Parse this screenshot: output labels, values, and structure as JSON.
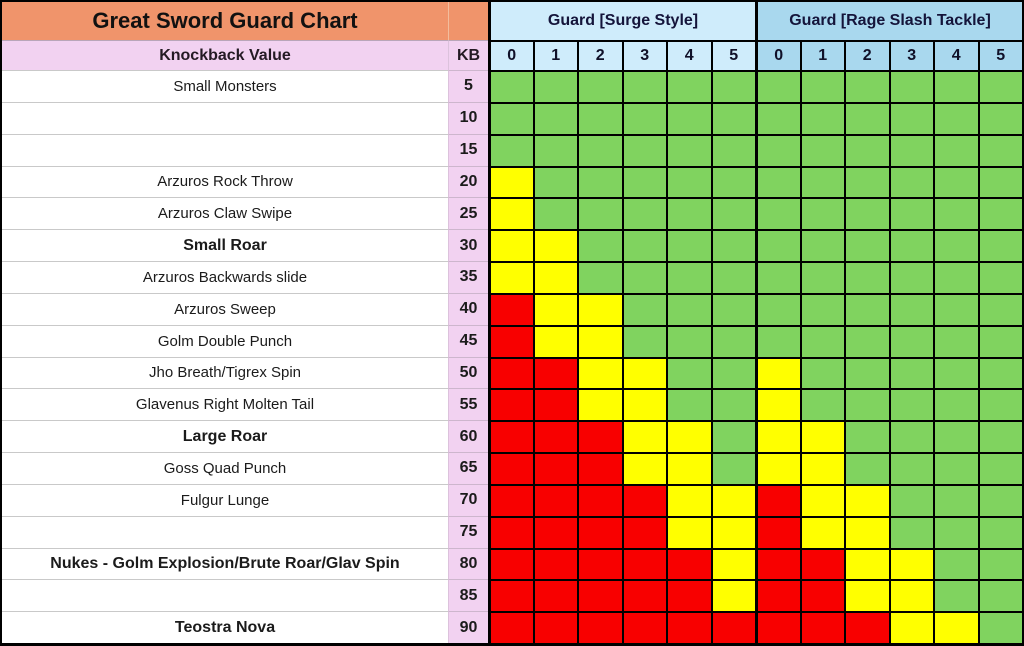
{
  "chart_data": {
    "type": "heatmap",
    "title": "Great Sword Guard Chart",
    "col_header": {
      "knockback_label": "Knockback Value",
      "kb_label": "KB",
      "groups": [
        {
          "label": "Guard [Surge Style]",
          "levels": [
            "0",
            "1",
            "2",
            "3",
            "4",
            "5"
          ]
        },
        {
          "label": "Guard [Rage Slash Tackle]",
          "levels": [
            "0",
            "1",
            "2",
            "3",
            "4",
            "5"
          ]
        }
      ]
    },
    "cell_colors": {
      "G": "#80D35F",
      "Y": "#FFFF00",
      "R": "#F80000"
    },
    "theme_colors": {
      "title_bg": "#F0946B",
      "kb_column_bg": "#F2D2F1",
      "highlight_row_bg": "#E1A1DC",
      "surge_header_bg": "#CFECFB",
      "rage_header_bg": "#A9D8EE"
    },
    "rows": [
      {
        "name": "Small Monsters",
        "kb": "5",
        "style": "normal",
        "cells": [
          "G",
          "G",
          "G",
          "G",
          "G",
          "G",
          "G",
          "G",
          "G",
          "G",
          "G",
          "G"
        ]
      },
      {
        "name": "",
        "kb": "10",
        "style": "normal",
        "cells": [
          "G",
          "G",
          "G",
          "G",
          "G",
          "G",
          "G",
          "G",
          "G",
          "G",
          "G",
          "G"
        ]
      },
      {
        "name": "",
        "kb": "15",
        "style": "normal",
        "cells": [
          "G",
          "G",
          "G",
          "G",
          "G",
          "G",
          "G",
          "G",
          "G",
          "G",
          "G",
          "G"
        ]
      },
      {
        "name": "Arzuros Rock Throw",
        "kb": "20",
        "style": "normal",
        "cells": [
          "Y",
          "G",
          "G",
          "G",
          "G",
          "G",
          "G",
          "G",
          "G",
          "G",
          "G",
          "G"
        ]
      },
      {
        "name": "Arzuros Claw Swipe",
        "kb": "25",
        "style": "normal",
        "cells": [
          "Y",
          "G",
          "G",
          "G",
          "G",
          "G",
          "G",
          "G",
          "G",
          "G",
          "G",
          "G"
        ]
      },
      {
        "name": "Small Roar",
        "kb": "30",
        "style": "highlight",
        "cells": [
          "Y",
          "Y",
          "G",
          "G",
          "G",
          "G",
          "G",
          "G",
          "G",
          "G",
          "G",
          "G"
        ]
      },
      {
        "name": "Arzuros Backwards slide",
        "kb": "35",
        "style": "normal",
        "cells": [
          "Y",
          "Y",
          "G",
          "G",
          "G",
          "G",
          "G",
          "G",
          "G",
          "G",
          "G",
          "G"
        ]
      },
      {
        "name": "Arzuros Sweep",
        "kb": "40",
        "style": "normal",
        "cells": [
          "R",
          "Y",
          "Y",
          "G",
          "G",
          "G",
          "G",
          "G",
          "G",
          "G",
          "G",
          "G"
        ]
      },
      {
        "name": "Golm Double Punch",
        "kb": "45",
        "style": "normal",
        "cells": [
          "R",
          "Y",
          "Y",
          "G",
          "G",
          "G",
          "G",
          "G",
          "G",
          "G",
          "G",
          "G"
        ]
      },
      {
        "name": "Jho Breath/Tigrex Spin",
        "kb": "50",
        "style": "normal",
        "cells": [
          "R",
          "R",
          "Y",
          "Y",
          "G",
          "G",
          "Y",
          "G",
          "G",
          "G",
          "G",
          "G"
        ]
      },
      {
        "name": "Glavenus Right Molten Tail",
        "kb": "55",
        "style": "normal",
        "cells": [
          "R",
          "R",
          "Y",
          "Y",
          "G",
          "G",
          "Y",
          "G",
          "G",
          "G",
          "G",
          "G"
        ]
      },
      {
        "name": "Large Roar",
        "kb": "60",
        "style": "highlight",
        "cells": [
          "R",
          "R",
          "R",
          "Y",
          "Y",
          "G",
          "Y",
          "Y",
          "G",
          "G",
          "G",
          "G"
        ]
      },
      {
        "name": "Goss Quad Punch",
        "kb": "65",
        "style": "normal",
        "cells": [
          "R",
          "R",
          "R",
          "Y",
          "Y",
          "G",
          "Y",
          "Y",
          "G",
          "G",
          "G",
          "G"
        ]
      },
      {
        "name": "Fulgur Lunge",
        "kb": "70",
        "style": "normal",
        "cells": [
          "R",
          "R",
          "R",
          "R",
          "Y",
          "Y",
          "R",
          "Y",
          "Y",
          "G",
          "G",
          "G"
        ]
      },
      {
        "name": "",
        "kb": "75",
        "style": "normal",
        "cells": [
          "R",
          "R",
          "R",
          "R",
          "Y",
          "Y",
          "R",
          "Y",
          "Y",
          "G",
          "G",
          "G"
        ]
      },
      {
        "name": "Nukes - Golm Explosion/Brute Roar/Glav Spin",
        "kb": "80",
        "style": "bold",
        "cells": [
          "R",
          "R",
          "R",
          "R",
          "R",
          "Y",
          "R",
          "R",
          "Y",
          "Y",
          "G",
          "G"
        ]
      },
      {
        "name": "",
        "kb": "85",
        "style": "normal",
        "cells": [
          "R",
          "R",
          "R",
          "R",
          "R",
          "Y",
          "R",
          "R",
          "Y",
          "Y",
          "G",
          "G"
        ]
      },
      {
        "name": "Teostra Nova",
        "kb": "90",
        "style": "bold",
        "cells": [
          "R",
          "R",
          "R",
          "R",
          "R",
          "R",
          "R",
          "R",
          "R",
          "Y",
          "Y",
          "G"
        ]
      }
    ]
  }
}
